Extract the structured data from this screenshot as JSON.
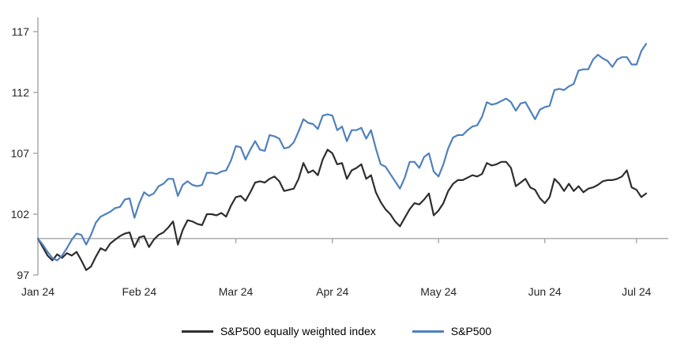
{
  "page": {
    "background": "#ffffff"
  },
  "chart_data": {
    "type": "line",
    "title": "",
    "xlabel": "",
    "ylabel": "",
    "grid": "off",
    "legend_position": "bottom-center",
    "axis_color": "#a6a6a6",
    "tick_label_color": "#262626",
    "baseline_value": 100,
    "y_axis": {
      "min": 97,
      "max": 117,
      "ticks": [
        97,
        102,
        107,
        112,
        117
      ]
    },
    "x_axis": {
      "labels": [
        "Jan 24",
        "Feb 24",
        "Mar 24",
        "Apr 24",
        "May 24",
        "Jun 24",
        "Jul 24"
      ],
      "month_start_indices": [
        0,
        21,
        41,
        61,
        83,
        105,
        124
      ]
    },
    "series": [
      {
        "name": "S&P500 equally weighted index",
        "color": "#2e2e2e",
        "values": [
          100.0,
          99.3,
          98.6,
          98.2,
          98.7,
          98.4,
          98.8,
          98.6,
          98.9,
          98.2,
          97.4,
          97.7,
          98.5,
          99.2,
          99.0,
          99.6,
          99.9,
          100.2,
          100.4,
          100.5,
          99.3,
          100.1,
          100.2,
          99.3,
          99.9,
          100.3,
          100.5,
          100.9,
          101.4,
          99.5,
          100.7,
          101.5,
          101.4,
          101.2,
          101.1,
          102.0,
          102.0,
          101.9,
          102.1,
          101.8,
          102.7,
          103.4,
          103.5,
          103.1,
          103.8,
          104.6,
          104.7,
          104.6,
          104.9,
          105.1,
          104.7,
          103.9,
          104.0,
          104.1,
          104.9,
          106.2,
          105.4,
          105.6,
          105.2,
          106.5,
          107.3,
          107.0,
          106.1,
          106.2,
          104.9,
          105.6,
          105.8,
          106.1,
          104.9,
          105.2,
          103.8,
          103.0,
          102.4,
          102.0,
          101.4,
          101.0,
          101.7,
          102.4,
          102.9,
          102.8,
          103.2,
          103.7,
          101.9,
          102.3,
          102.9,
          103.9,
          104.5,
          104.8,
          104.8,
          105.0,
          105.2,
          105.1,
          105.3,
          106.2,
          106.0,
          106.1,
          106.3,
          106.3,
          105.8,
          104.3,
          104.6,
          104.9,
          104.2,
          104.0,
          103.3,
          102.9,
          103.4,
          104.9,
          104.5,
          103.9,
          104.5,
          103.9,
          104.3,
          103.8,
          104.1,
          104.2,
          104.4,
          104.7,
          104.8,
          104.8,
          104.9,
          105.1,
          105.6,
          104.2,
          104.0,
          103.4,
          103.7
        ]
      },
      {
        "name": "S&P500",
        "color": "#4f81bd",
        "values": [
          100.0,
          99.5,
          98.9,
          98.4,
          98.2,
          98.6,
          99.2,
          99.9,
          100.4,
          100.3,
          99.5,
          100.3,
          101.3,
          101.8,
          102.0,
          102.2,
          102.5,
          102.6,
          103.2,
          103.3,
          101.7,
          102.9,
          103.8,
          103.5,
          103.7,
          104.3,
          104.5,
          104.9,
          104.9,
          103.5,
          104.4,
          104.7,
          104.4,
          104.3,
          104.4,
          105.4,
          105.4,
          105.3,
          105.5,
          105.6,
          106.4,
          107.6,
          107.5,
          106.5,
          107.3,
          108.0,
          107.3,
          107.2,
          108.5,
          108.4,
          108.2,
          107.4,
          107.5,
          107.9,
          108.8,
          109.8,
          109.5,
          109.4,
          109.0,
          110.1,
          110.2,
          110.1,
          108.9,
          109.2,
          108.0,
          108.9,
          108.9,
          109.1,
          108.2,
          108.9,
          107.4,
          106.1,
          105.9,
          105.3,
          104.7,
          104.1,
          105.0,
          106.3,
          106.3,
          105.8,
          106.7,
          107.0,
          105.5,
          105.1,
          106.1,
          107.4,
          108.3,
          108.5,
          108.5,
          108.9,
          109.2,
          109.3,
          110.0,
          111.2,
          111.0,
          111.1,
          111.3,
          111.5,
          111.2,
          110.5,
          111.1,
          111.2,
          110.5,
          109.8,
          110.6,
          110.8,
          110.9,
          112.2,
          112.3,
          112.2,
          112.5,
          112.7,
          113.8,
          113.9,
          113.9,
          114.7,
          115.1,
          114.8,
          114.6,
          114.1,
          114.7,
          114.9,
          114.9,
          114.3,
          114.3,
          115.4,
          116.0
        ]
      }
    ]
  }
}
